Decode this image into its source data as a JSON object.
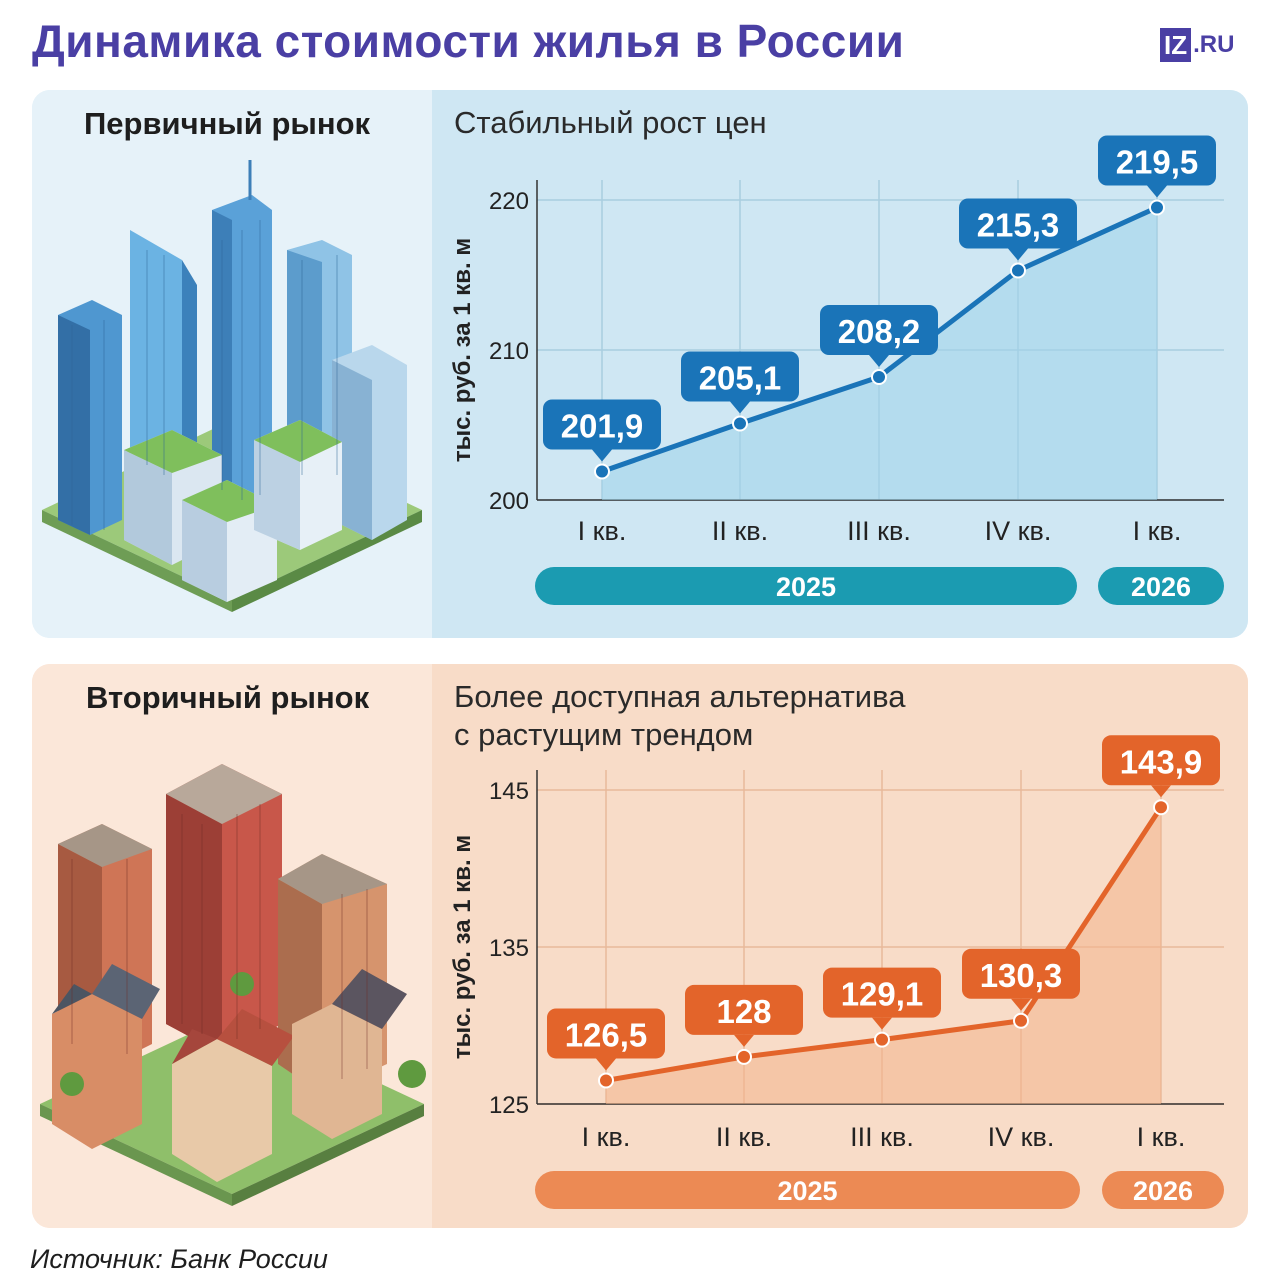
{
  "header": {
    "title": "Динамика стоимости жилья в России",
    "logo_box": "IZ",
    "logo_text": ".RU"
  },
  "colors": {
    "primary_line": "#1a74b8",
    "primary_year_bar": "#1b9bb1",
    "secondary_line": "#e3642a",
    "secondary_year_bar": "#ec8a54"
  },
  "chart_data": [
    {
      "type": "line",
      "section_label": "Первичный рынок",
      "title": "Стабильный рост цен",
      "ylabel": "тыс. руб. за 1 кв. м",
      "categories": [
        "I кв.",
        "II кв.",
        "III кв.",
        "IV кв.",
        "I кв."
      ],
      "years": [
        {
          "label": "2025",
          "span": 4
        },
        {
          "label": "2026",
          "span": 1
        }
      ],
      "values": [
        201.9,
        205.1,
        208.2,
        215.3,
        219.5
      ],
      "value_labels": [
        "201,9",
        "205,1",
        "208,2",
        "215,3",
        "219,5"
      ],
      "yticks": [
        "200",
        "210",
        "220"
      ],
      "ylim": [
        200,
        220
      ],
      "grid": true
    },
    {
      "type": "line",
      "section_label": "Вторичный рынок",
      "title": "Более доступная альтернатива с растущим трендом",
      "title_lines": [
        "Более доступная альтернатива",
        "с растущим трендом"
      ],
      "ylabel": "тыс. руб. за 1 кв. м",
      "categories": [
        "I кв.",
        "II кв.",
        "III кв.",
        "IV кв.",
        "I кв."
      ],
      "years": [
        {
          "label": "2025",
          "span": 4
        },
        {
          "label": "2026",
          "span": 1
        }
      ],
      "values": [
        126.5,
        128,
        129.1,
        130.3,
        143.9
      ],
      "value_labels": [
        "126,5",
        "128",
        "129,1",
        "130,3",
        "143,9"
      ],
      "yticks": [
        "125",
        "135",
        "145"
      ],
      "ylim": [
        125,
        145
      ],
      "grid": true
    }
  ],
  "footer": {
    "source": "Источник: Банк России"
  }
}
